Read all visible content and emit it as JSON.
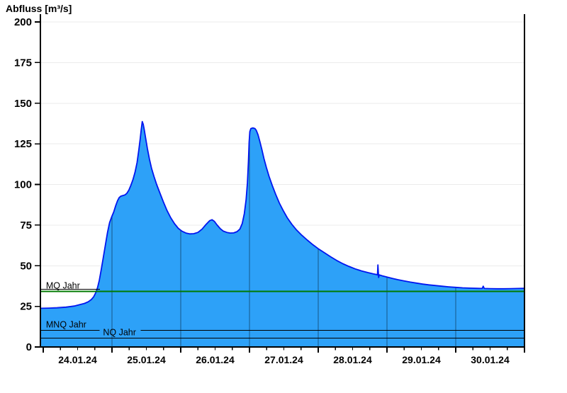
{
  "page": {
    "title": "Abfluss [m³/s]"
  },
  "chart_data": {
    "type": "area",
    "title": "Abfluss [m³/s]",
    "ylabel": "Abfluss [m³/s]",
    "ylim": [
      0,
      200
    ],
    "y_tick_step": 25,
    "y_tick_labels": [
      "0",
      "25",
      "50",
      "75",
      "100",
      "125",
      "150",
      "175",
      "200"
    ],
    "x_tick_labels": [
      "24.01.24",
      "25.01.24",
      "26.01.24",
      "27.01.24",
      "28.01.24",
      "29.01.24",
      "30.01.24"
    ],
    "x_axis_note": "x in days since 24.01.24 00:00; plotted range -0.041 to 7.0; major ticks each day, minor ticks each 6 h",
    "x_range_days": [
      -0.041,
      7.0
    ],
    "grid": "horizontal light gray every 25; dark day separators inside filled area",
    "legend_position": "none",
    "series": [
      {
        "name": "Abfluss",
        "unit": "m³/s",
        "points": [
          [
            -0.041,
            23.8
          ],
          [
            0.08,
            23.9
          ],
          [
            0.2,
            24.1
          ],
          [
            0.33,
            24.5
          ],
          [
            0.45,
            25.2
          ],
          [
            0.53,
            26.0
          ],
          [
            0.6,
            26.8
          ],
          [
            0.655,
            27.8
          ],
          [
            0.7,
            29.2
          ],
          [
            0.735,
            31.0
          ],
          [
            0.765,
            33.5
          ],
          [
            0.79,
            36.5
          ],
          [
            0.815,
            41.0
          ],
          [
            0.845,
            48.0
          ],
          [
            0.875,
            55.5
          ],
          [
            0.905,
            63.0
          ],
          [
            0.935,
            70.5
          ],
          [
            0.965,
            76.5
          ],
          [
            0.995,
            80.0
          ],
          [
            1.025,
            83.0
          ],
          [
            1.055,
            87.0
          ],
          [
            1.08,
            90.0
          ],
          [
            1.105,
            92.0
          ],
          [
            1.13,
            92.8
          ],
          [
            1.16,
            93.2
          ],
          [
            1.19,
            93.6
          ],
          [
            1.215,
            94.5
          ],
          [
            1.245,
            96.5
          ],
          [
            1.275,
            99.5
          ],
          [
            1.305,
            103.0
          ],
          [
            1.335,
            107.5
          ],
          [
            1.365,
            113.5
          ],
          [
            1.39,
            121.0
          ],
          [
            1.41,
            128.0
          ],
          [
            1.425,
            133.5
          ],
          [
            1.44,
            138.7
          ],
          [
            1.455,
            137.0
          ],
          [
            1.47,
            133.5
          ],
          [
            1.49,
            128.5
          ],
          [
            1.515,
            122.0
          ],
          [
            1.545,
            115.5
          ],
          [
            1.575,
            110.0
          ],
          [
            1.61,
            105.0
          ],
          [
            1.65,
            100.0
          ],
          [
            1.695,
            95.0
          ],
          [
            1.745,
            89.5
          ],
          [
            1.8,
            84.0
          ],
          [
            1.855,
            79.5
          ],
          [
            1.91,
            75.8
          ],
          [
            1.965,
            73.0
          ],
          [
            2.02,
            71.2
          ],
          [
            2.075,
            70.1
          ],
          [
            2.13,
            69.6
          ],
          [
            2.19,
            69.7
          ],
          [
            2.25,
            70.5
          ],
          [
            2.31,
            72.5
          ],
          [
            2.37,
            75.5
          ],
          [
            2.42,
            77.7
          ],
          [
            2.455,
            78.3
          ],
          [
            2.49,
            77.3
          ],
          [
            2.53,
            75.0
          ],
          [
            2.575,
            72.8
          ],
          [
            2.62,
            71.3
          ],
          [
            2.67,
            70.5
          ],
          [
            2.72,
            70.1
          ],
          [
            2.77,
            70.2
          ],
          [
            2.82,
            71.0
          ],
          [
            2.86,
            72.5
          ],
          [
            2.895,
            76.0
          ],
          [
            2.925,
            82.0
          ],
          [
            2.95,
            90.5
          ],
          [
            2.97,
            101.0
          ],
          [
            2.985,
            114.0
          ],
          [
            2.995,
            126.0
          ],
          [
            3.005,
            132.5
          ],
          [
            3.02,
            134.4
          ],
          [
            3.05,
            134.8
          ],
          [
            3.08,
            134.4
          ],
          [
            3.1,
            133.2
          ],
          [
            3.125,
            130.5
          ],
          [
            3.15,
            126.5
          ],
          [
            3.18,
            121.5
          ],
          [
            3.21,
            116.0
          ],
          [
            3.245,
            110.5
          ],
          [
            3.285,
            105.0
          ],
          [
            3.33,
            99.5
          ],
          [
            3.38,
            94.0
          ],
          [
            3.435,
            88.5
          ],
          [
            3.49,
            84.0
          ],
          [
            3.55,
            79.5
          ],
          [
            3.615,
            75.5
          ],
          [
            3.685,
            72.0
          ],
          [
            3.76,
            68.8
          ],
          [
            3.84,
            65.8
          ],
          [
            3.92,
            63.0
          ],
          [
            4.0,
            60.5
          ],
          [
            4.09,
            58.0
          ],
          [
            4.18,
            55.5
          ],
          [
            4.27,
            53.2
          ],
          [
            4.36,
            51.2
          ],
          [
            4.45,
            49.5
          ],
          [
            4.54,
            48.0
          ],
          [
            4.63,
            46.8
          ],
          [
            4.72,
            45.8
          ],
          [
            4.8,
            45.0
          ],
          [
            4.845,
            44.6
          ],
          [
            4.862,
            44.4
          ],
          [
            4.868,
            50.5
          ],
          [
            4.874,
            46.0
          ],
          [
            4.878,
            42.8
          ],
          [
            4.885,
            44.4
          ],
          [
            4.93,
            43.8
          ],
          [
            5.0,
            43.0
          ],
          [
            5.08,
            42.2
          ],
          [
            5.16,
            41.4
          ],
          [
            5.25,
            40.6
          ],
          [
            5.34,
            39.9
          ],
          [
            5.43,
            39.3
          ],
          [
            5.52,
            38.7
          ],
          [
            5.61,
            38.2
          ],
          [
            5.7,
            37.8
          ],
          [
            5.8,
            37.4
          ],
          [
            5.9,
            37.0
          ],
          [
            6.0,
            36.7
          ],
          [
            6.1,
            36.4
          ],
          [
            6.2,
            36.2
          ],
          [
            6.3,
            36.1
          ],
          [
            6.385,
            36.0
          ],
          [
            6.4,
            37.4
          ],
          [
            6.415,
            36.0
          ],
          [
            6.5,
            35.9
          ],
          [
            6.6,
            35.8
          ],
          [
            6.7,
            35.8
          ],
          [
            6.8,
            35.9
          ],
          [
            6.9,
            36.0
          ],
          [
            7.0,
            36.1
          ]
        ]
      }
    ],
    "reference_lines": [
      {
        "label": "MQ Jahr",
        "value": 34.2,
        "color": "#007a00",
        "label_x_day": 0.04,
        "underline": true
      },
      {
        "label": "MNQ Jahr",
        "value": 10.3,
        "color": "#000000",
        "label_x_day": 0.04,
        "underline": true,
        "gap_days": [
          0.82,
          1.42
        ]
      },
      {
        "label": "NQ Jahr",
        "value": 5.5,
        "color": "#000000",
        "label_x_day": 0.87,
        "underline": true
      }
    ],
    "colors": {
      "area_fill": "#2da1f8",
      "area_line": "#0016f0",
      "h_grid": "#ebebeb",
      "day_grid": "rgba(0,0,0,0.45)",
      "axis": "#000000",
      "mq_line": "#007a00"
    }
  }
}
